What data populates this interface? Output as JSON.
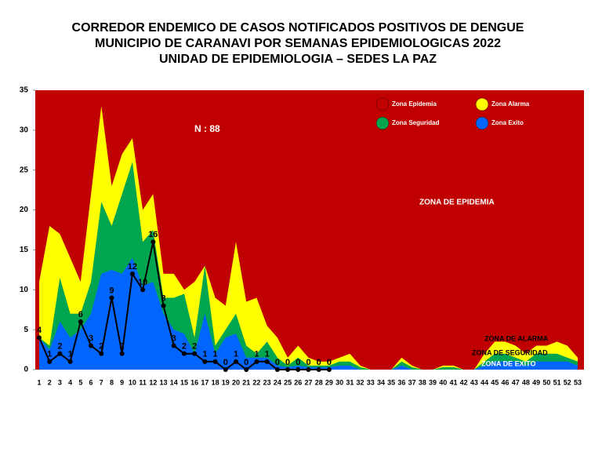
{
  "chart_data": {
    "type": "area",
    "title": [
      "CORREDOR ENDEMICO DE CASOS NOTIFICADOS POSITIVOS DE DENGUE",
      "MUNICIPIO DE CARANAVI  POR SEMANAS EPIDEMIOLOGICAS  2022",
      "UNIDAD DE EPIDEMIOLOGIA – SEDES LA PAZ"
    ],
    "categories": [
      "1",
      "2",
      "3",
      "4",
      "5",
      "6",
      "7",
      "8",
      "9",
      "10",
      "11",
      "12",
      "13",
      "14",
      "15",
      "16",
      "17",
      "18",
      "19",
      "20",
      "21",
      "22",
      "23",
      "24",
      "25",
      "26",
      "27",
      "28",
      "29",
      "30",
      "31",
      "32",
      "33",
      "34",
      "35",
      "36",
      "37",
      "38",
      "39",
      "40",
      "41",
      "42",
      "43",
      "44",
      "45",
      "46",
      "47",
      "48",
      "49",
      "50",
      "51",
      "52",
      "53"
    ],
    "ylim": [
      0,
      35
    ],
    "yticks": [
      0,
      5,
      10,
      15,
      20,
      25,
      30,
      35
    ],
    "background_zone": {
      "name": "Zona Epidemia",
      "color": "#c00000"
    },
    "series": [
      {
        "name": "Zona Alarma",
        "color": "#ffff00",
        "values": [
          11,
          18,
          17,
          14,
          11,
          22,
          33,
          23,
          27,
          29,
          20,
          22,
          12,
          12,
          10,
          11,
          13,
          9,
          8,
          16,
          8.5,
          9,
          5.5,
          4,
          1.5,
          3,
          1.5,
          1,
          1,
          1.5,
          2,
          0.5,
          0,
          0,
          0,
          1.5,
          0.5,
          0,
          0,
          0.5,
          0.5,
          0,
          0,
          2,
          3.5,
          3.5,
          3,
          2,
          3,
          3,
          3.5,
          3,
          1.5
        ]
      },
      {
        "name": "Zona Seguridad",
        "color": "#00a550",
        "values": [
          4,
          3,
          11.5,
          7,
          7,
          11,
          21,
          18,
          22,
          26,
          16,
          17.5,
          9,
          9,
          9.5,
          4,
          13,
          3,
          5,
          7,
          3,
          2,
          3.5,
          1.5,
          0.5,
          1.5,
          0.5,
          0.5,
          0.5,
          1,
          1,
          0.3,
          0,
          0,
          0,
          1,
          0.3,
          0,
          0,
          0.3,
          0.3,
          0,
          0,
          1,
          2,
          2,
          1.5,
          1,
          2,
          2,
          2,
          1.5,
          1
        ]
      },
      {
        "name": "Zona Exito",
        "color": "#0066ff",
        "values": [
          4,
          2.5,
          6,
          4,
          5,
          7,
          12,
          12.5,
          12,
          14,
          10.5,
          11,
          7,
          5,
          4.5,
          2,
          7,
          2,
          4,
          4.5,
          1.5,
          1.5,
          1.5,
          0.5,
          0.3,
          0.5,
          0.3,
          0.3,
          0.3,
          0.5,
          0.5,
          0,
          0,
          0,
          0,
          0.5,
          0,
          0,
          0,
          0,
          0,
          0,
          0,
          0.5,
          1,
          1,
          1,
          0.5,
          1,
          1,
          1,
          1,
          0.5
        ]
      }
    ],
    "cases": {
      "color": "#000000",
      "values": [
        4,
        1,
        2,
        1,
        6,
        3,
        2,
        9,
        2,
        12,
        10,
        16,
        8,
        3,
        2,
        2,
        1,
        1,
        0,
        1,
        0,
        1,
        1,
        0,
        0,
        0,
        0,
        0,
        0
      ]
    },
    "annotations": [
      "N : 88",
      "ZONA DE EPIDEMIA",
      "ZONA DE ALARMA",
      "ZONA DE  SEGURIDAD",
      "ZONA DE  EXITO"
    ]
  }
}
